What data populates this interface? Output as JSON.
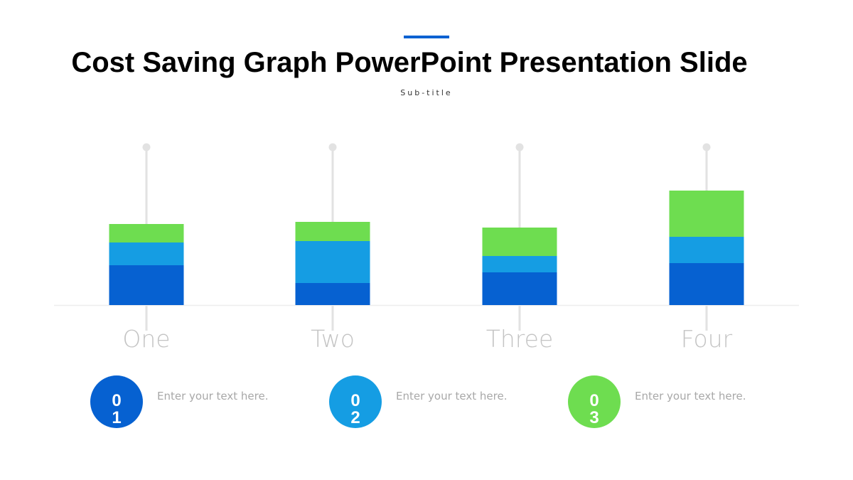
{
  "slide": {
    "title": "Cost Saving Graph PowerPoint Presentation Slide",
    "subtitle": "Sub-title",
    "accent_color": "#0661D1"
  },
  "chart_data": {
    "type": "bar",
    "stacked": true,
    "categories": [
      "One",
      "Two",
      "Three",
      "Four"
    ],
    "series": [
      {
        "color": "#0661D1",
        "values": [
          56,
          31,
          46,
          59
        ]
      },
      {
        "color": "#159DE3",
        "values": [
          32,
          59,
          23,
          37
        ]
      },
      {
        "color": "#6EDD50",
        "values": [
          26,
          27,
          40,
          65
        ]
      }
    ],
    "ylim": [
      0,
      230
    ],
    "grid": false,
    "legend": "none"
  },
  "legend_items": [
    {
      "number": "01",
      "text": "Enter your text here.",
      "color": "#0661D1"
    },
    {
      "number": "02",
      "text": "Enter your text here.",
      "color": "#159DE3"
    },
    {
      "number": "03",
      "text": "Enter your text here.",
      "color": "#6EDD50"
    }
  ]
}
